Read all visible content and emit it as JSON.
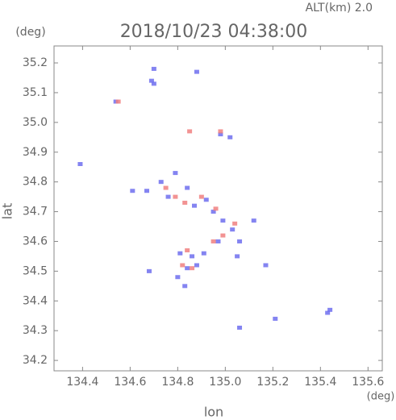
{
  "chart_data": {
    "type": "scatter",
    "header": "ALT(km) 2.0",
    "title": "2018/10/23 04:38:00",
    "y_unit": "(deg)",
    "x_unit": "(deg)",
    "x_label": "lon",
    "y_label": "lat",
    "xlim": [
      134.28,
      135.66
    ],
    "ylim": [
      34.165,
      35.257
    ],
    "xticks": [
      134.4,
      134.6,
      134.8,
      {
        "value": 135.0,
        "label": "135.0"
      },
      135.2,
      135.4,
      135.6
    ],
    "yticks": [
      34.2,
      34.3,
      34.4,
      34.5,
      34.6,
      34.7,
      34.8,
      34.9,
      {
        "value": 35.0,
        "label": "35.0"
      },
      35.1,
      35.2
    ],
    "grid": false,
    "series": [
      {
        "color": "#6f6fef",
        "x": [
          134.7,
          134.69,
          134.7,
          134.54,
          134.88,
          134.39,
          134.61,
          134.67,
          134.73,
          134.79,
          134.76,
          134.84,
          134.87,
          134.92,
          134.95,
          134.99,
          135.03,
          134.97,
          135.06,
          135.12,
          134.81,
          134.86,
          134.91,
          134.84,
          134.8,
          134.88,
          135.05,
          134.68,
          135.21,
          135.43,
          135.44,
          135.06,
          134.98,
          135.02,
          134.83,
          135.17
        ],
        "values": [
          35.18,
          35.14,
          35.13,
          35.07,
          35.17,
          34.86,
          34.77,
          34.77,
          34.8,
          34.83,
          34.75,
          34.78,
          34.72,
          34.74,
          34.7,
          34.67,
          34.64,
          34.6,
          34.6,
          34.67,
          34.56,
          34.55,
          34.56,
          34.51,
          34.48,
          34.52,
          34.55,
          34.5,
          34.34,
          34.36,
          34.37,
          34.31,
          34.96,
          34.95,
          34.45,
          34.52
        ]
      },
      {
        "color": "#f08080",
        "x": [
          134.55,
          134.85,
          134.98,
          134.79,
          134.83,
          134.9,
          134.96,
          135.04,
          134.99,
          134.84,
          134.86,
          134.82,
          134.95,
          134.75
        ],
        "values": [
          35.07,
          34.97,
          34.97,
          34.75,
          34.73,
          34.75,
          34.71,
          34.66,
          34.62,
          34.57,
          34.51,
          34.52,
          34.6,
          34.78
        ]
      }
    ]
  }
}
